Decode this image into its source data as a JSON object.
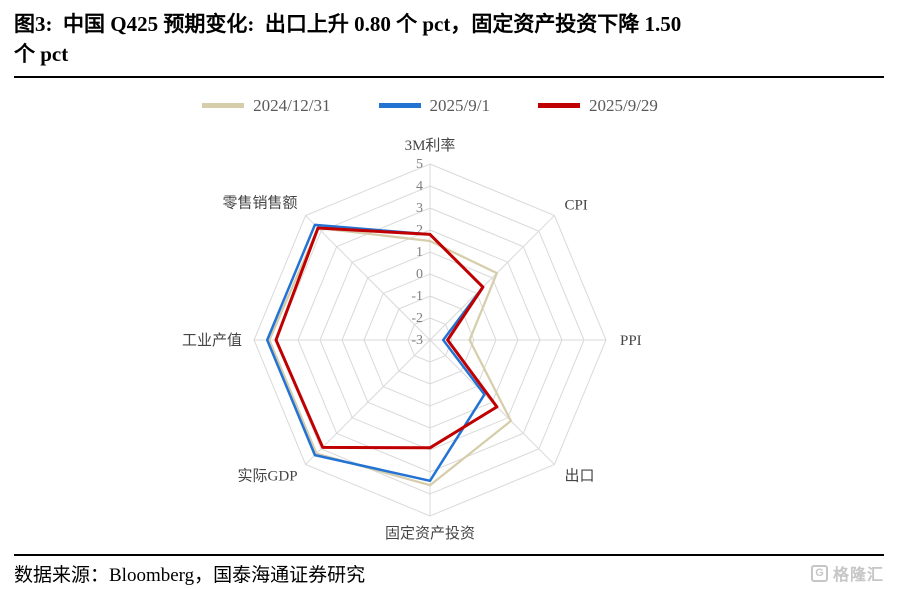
{
  "page": {
    "title_line1": "图3:  中国 Q425 预期变化:  出口上升 0.80 个 pct，固定资产投资下降 1.50",
    "title_line2": "个 pct",
    "source": "数据来源：Bloomberg，国泰海通证券研究",
    "watermark": "格隆汇"
  },
  "chart_data": {
    "type": "radar",
    "title": "中国 Q425 预期变化",
    "categories": [
      "3M利率",
      "CPI",
      "PPI",
      "出口",
      "固定资产投资",
      "实际GDP",
      "工业产值",
      "零售销售额"
    ],
    "series": [
      {
        "name": "2024/12/31",
        "color": "#d6cdab",
        "width": 2.25,
        "values": [
          1.5,
          1.3,
          -1.2,
          2.2,
          3.6,
          4.3,
          4.3,
          4.2
        ]
      },
      {
        "name": "2025/9/1",
        "color": "#2273d3",
        "width": 2.5,
        "values": [
          1.8,
          0.4,
          -2.4,
          0.5,
          3.4,
          4.4,
          4.4,
          4.4
        ]
      },
      {
        "name": "2025/9/29",
        "color": "#c00000",
        "width": 3,
        "values": [
          1.8,
          0.4,
          -2.2,
          1.3,
          1.9,
          3.9,
          4.0,
          4.2
        ]
      }
    ],
    "rmin": -3,
    "rmax": 5,
    "ticks": [
      5,
      4,
      3,
      2,
      1,
      0,
      -1,
      -2,
      -3
    ],
    "grid": true,
    "grid_color": "#d9d9d9",
    "legend_position": "top"
  }
}
